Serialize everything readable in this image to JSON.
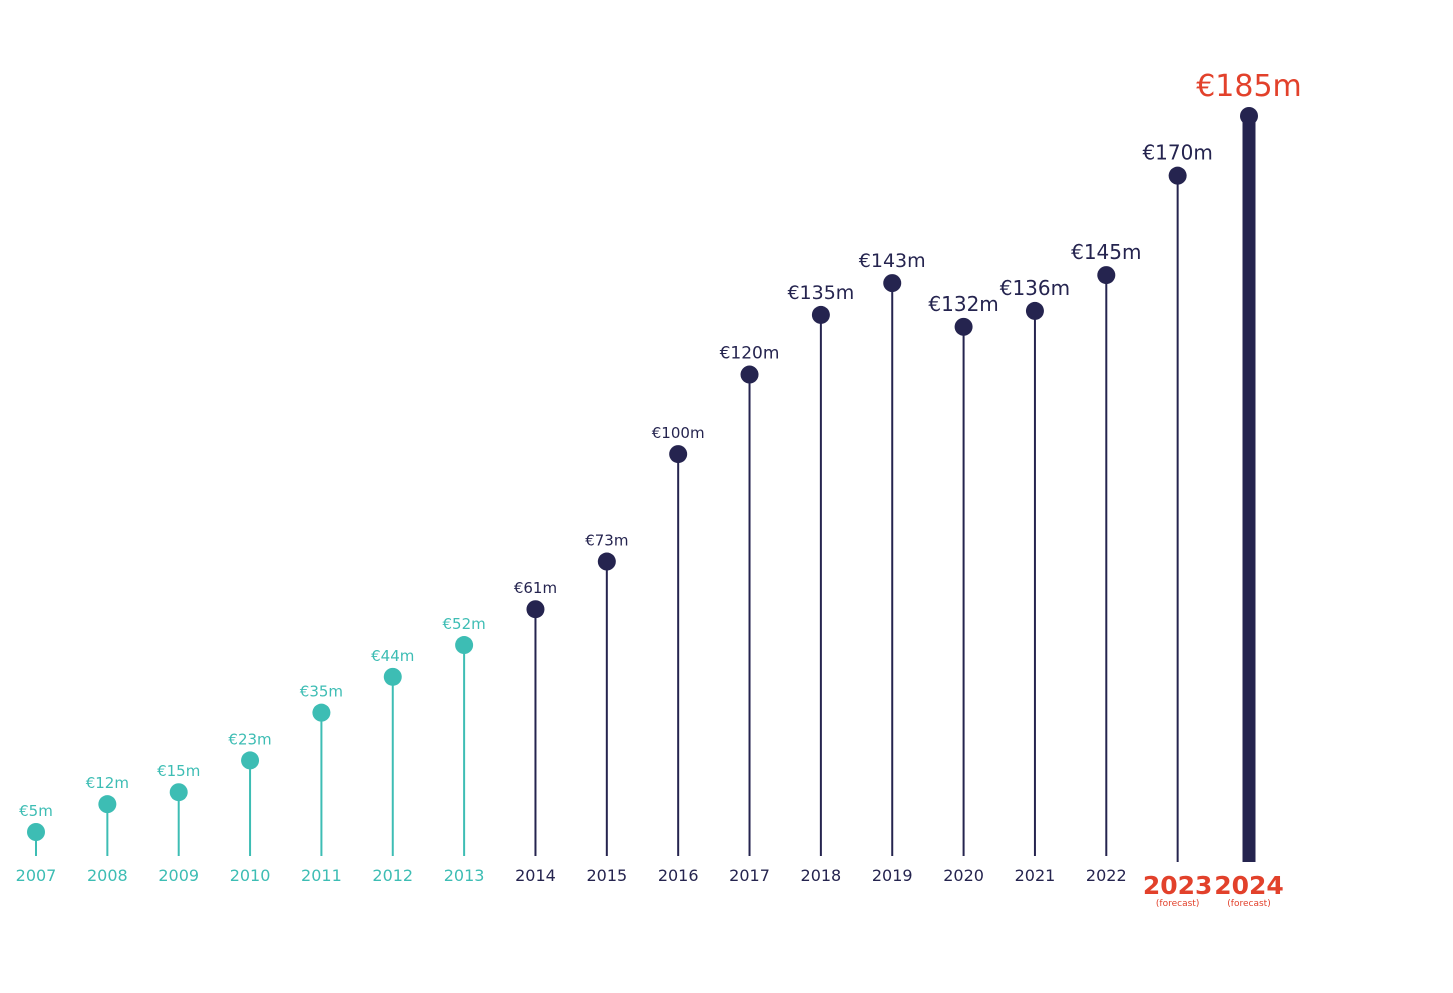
{
  "chart_data": {
    "type": "lollipop",
    "title": "",
    "xlabel": "",
    "ylabel": "",
    "ylim": [
      0,
      200
    ],
    "categories": [
      "2007",
      "2008",
      "2009",
      "2010",
      "2011",
      "2012",
      "2013",
      "2014",
      "2015",
      "2016",
      "2017",
      "2018",
      "2019",
      "2020",
      "2021",
      "2022",
      "2023",
      "2024"
    ],
    "values": [
      5,
      12,
      15,
      23,
      35,
      44,
      52,
      61,
      73,
      100,
      120,
      135,
      143,
      132,
      136,
      145,
      170,
      185
    ],
    "value_labels": [
      "€5m",
      "€12m",
      "€15m",
      "€23m",
      "€35m",
      "€44m",
      "€52m",
      "€61m",
      "€73m",
      "€100m",
      "€120m",
      "€135m",
      "€143m",
      "€132m",
      "€136m",
      "€145m",
      "€170m",
      "€185m"
    ],
    "forecast_note": "(forecast)",
    "forecast_years": [
      "2023",
      "2024"
    ],
    "grid": false,
    "legend": "none",
    "colors": {
      "early": "#3dbdb4",
      "main": "#25244f",
      "forecast": "#e2412b"
    }
  }
}
